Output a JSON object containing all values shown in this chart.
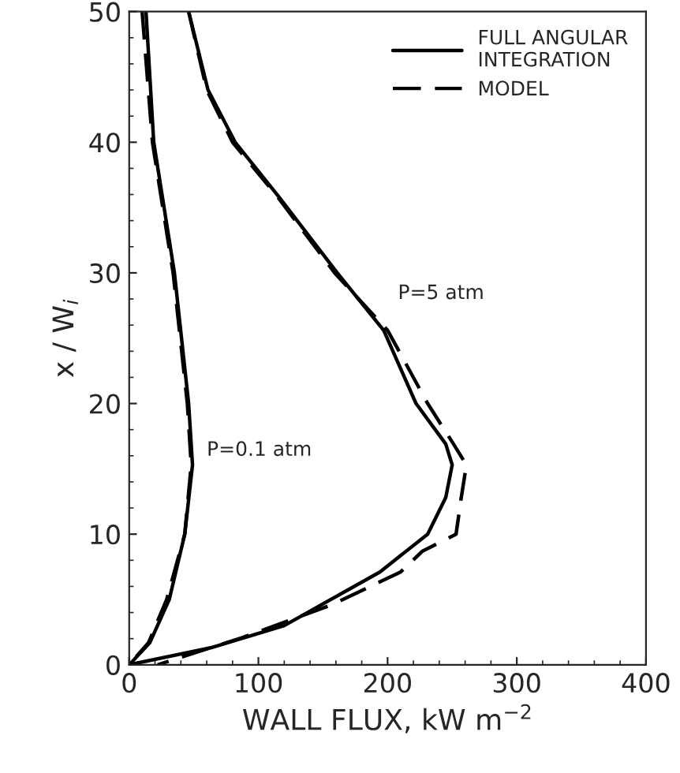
{
  "chart_data": {
    "type": "line",
    "xlabel": "WALL FLUX, kW m$^{−2}$",
    "ylabel": "x / W$_{i}$",
    "xlim": [
      0,
      400
    ],
    "ylim": [
      0,
      50
    ],
    "xticks": [
      0,
      100,
      200,
      300,
      400
    ],
    "yticks": [
      0,
      10,
      20,
      30,
      40,
      50
    ],
    "grid": false,
    "legend": "top right",
    "series": [
      {
        "name": "FULL ANGULAR INTEGRATION",
        "color": "#000000",
        "line_style": "solid",
        "x": [
          46,
          61,
          82,
          116,
          161,
          197,
          222,
          245,
          250,
          245,
          231,
          194,
          120,
          63,
          0
        ],
        "values": [
          50,
          44,
          40,
          35.8,
          30,
          25.6,
          20,
          16.9,
          15.3,
          12.8,
          10,
          7.1,
          3,
          1.3,
          0
        ]
      },
      {
        "name": "MODEL",
        "color": "#000000",
        "line_style": "dashed",
        "x": [
          46,
          60,
          80,
          115,
          159,
          200,
          231,
          251,
          261,
          257,
          253,
          227,
          210,
          157,
          88,
          22
        ],
        "values": [
          50,
          44,
          40,
          35.8,
          30,
          25.6,
          20,
          16.9,
          15.3,
          12.8,
          10,
          8.7,
          7.1,
          4.6,
          2.1,
          0
        ]
      },
      {
        "color": "#000000",
        "line_style": "solid",
        "x": [
          13,
          19,
          35,
          46,
          49,
          43,
          31,
          16,
          0
        ],
        "values": [
          50,
          40,
          30,
          20,
          15.3,
          10,
          5,
          1.7,
          0
        ]
      },
      {
        "color": "#000000",
        "line_style": "dashed",
        "x": [
          10,
          18,
          34,
          45,
          48,
          43,
          29,
          15,
          0
        ],
        "values": [
          50,
          40,
          30,
          20,
          15.3,
          10,
          5,
          1.7,
          0
        ]
      }
    ],
    "annotations": [
      "P=5 atm",
      "P=0.1 atm"
    ]
  }
}
